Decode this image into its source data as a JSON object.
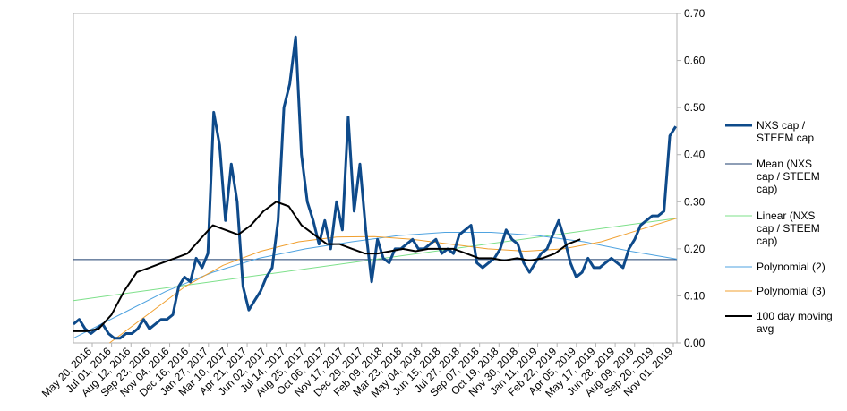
{
  "chart_data": {
    "type": "line",
    "title": "",
    "xlabel": "",
    "ylabel": "",
    "ylim": [
      0,
      0.7
    ],
    "y_ticks": [
      "0.00",
      "0.10",
      "0.20",
      "0.30",
      "0.40",
      "0.50",
      "0.60",
      "0.70"
    ],
    "y_axis_side": "right",
    "grid": false,
    "legend_position": "right",
    "x_tick_labels": [
      "May 20, 2016",
      "Jul 01, 2016",
      "Aug 12, 2016",
      "Sep 23, 2016",
      "Nov 04, 2016",
      "Dec 16, 2016",
      "Jan 27, 2017",
      "Mar 10, 2017",
      "Apr 21, 2017",
      "Jun 02, 2017",
      "Jul 14, 2017",
      "Aug 25, 2017",
      "Oct 06, 2017",
      "Nov 17, 2017",
      "Dec 29, 2017",
      "Feb 09, 2018",
      "Mar 23, 2018",
      "May 04, 2018",
      "Jun 15, 2018",
      "Jul 27, 2018",
      "Sep 07, 2018",
      "Oct 19, 2018",
      "Nov 30, 2018",
      "Jan 11, 2019",
      "Feb 22, 2019",
      "Apr 05, 2019",
      "May 17, 2019",
      "Jun 28, 2019",
      "Aug 09, 2019",
      "Sep 20, 2019",
      "Nov 01, 2019"
    ],
    "series": [
      {
        "name": "NXS cap / STEEM cap",
        "color": "#0e4a8a",
        "width": 3,
        "values": [
          0.04,
          0.05,
          0.03,
          0.02,
          0.03,
          0.04,
          0.02,
          0.01,
          0.01,
          0.02,
          0.02,
          0.03,
          0.05,
          0.03,
          0.04,
          0.05,
          0.05,
          0.06,
          0.12,
          0.14,
          0.13,
          0.18,
          0.16,
          0.19,
          0.49,
          0.42,
          0.26,
          0.38,
          0.3,
          0.12,
          0.07,
          0.09,
          0.11,
          0.14,
          0.16,
          0.26,
          0.5,
          0.55,
          0.65,
          0.4,
          0.3,
          0.26,
          0.21,
          0.26,
          0.2,
          0.3,
          0.24,
          0.48,
          0.28,
          0.38,
          0.24,
          0.13,
          0.22,
          0.18,
          0.17,
          0.2,
          0.2,
          0.21,
          0.22,
          0.2,
          0.2,
          0.21,
          0.22,
          0.19,
          0.2,
          0.19,
          0.23,
          0.24,
          0.25,
          0.17,
          0.16,
          0.17,
          0.18,
          0.2,
          0.24,
          0.22,
          0.21,
          0.17,
          0.15,
          0.17,
          0.19,
          0.2,
          0.23,
          0.26,
          0.22,
          0.17,
          0.14,
          0.15,
          0.18,
          0.16,
          0.16,
          0.17,
          0.18,
          0.17,
          0.16,
          0.2,
          0.22,
          0.25,
          0.26,
          0.27,
          0.27,
          0.28,
          0.44,
          0.46
        ]
      },
      {
        "name": "Mean (NXS cap / STEEM cap)",
        "color": "#1c3d6e",
        "width": 1,
        "values": [
          0.177,
          0.177
        ]
      },
      {
        "name": "Linear (NXS cap / STEEM cap)",
        "color": "#7de08a",
        "width": 1,
        "values": [
          0.09,
          0.265
        ]
      },
      {
        "name": "Polynomial (2)",
        "color": "#4fa3e0",
        "width": 1,
        "values": [
          0.01,
          0.06,
          0.11,
          0.15,
          0.18,
          0.2,
          0.215,
          0.228,
          0.235,
          0.235,
          0.228,
          0.215,
          0.195,
          0.178
        ]
      },
      {
        "name": "Polynomial (3)",
        "color": "#f0a030",
        "width": 1,
        "values": [
          0.0,
          0.06,
          0.12,
          0.165,
          0.195,
          0.215,
          0.225,
          0.226,
          0.22,
          0.21,
          0.2,
          0.195,
          0.2,
          0.215,
          0.24,
          0.265
        ]
      },
      {
        "name": "100 day moving avg",
        "color": "#000000",
        "width": 2,
        "values": [
          0.025,
          0.025,
          0.03,
          0.06,
          0.11,
          0.15,
          0.16,
          0.17,
          0.18,
          0.19,
          0.22,
          0.25,
          0.24,
          0.23,
          0.25,
          0.28,
          0.3,
          0.29,
          0.25,
          0.23,
          0.21,
          0.21,
          0.2,
          0.19,
          0.19,
          0.195,
          0.2,
          0.195,
          0.2,
          0.2,
          0.2,
          0.19,
          0.18,
          0.18,
          0.175,
          0.18,
          0.175,
          0.18,
          0.19,
          0.21,
          0.22
        ]
      }
    ]
  }
}
